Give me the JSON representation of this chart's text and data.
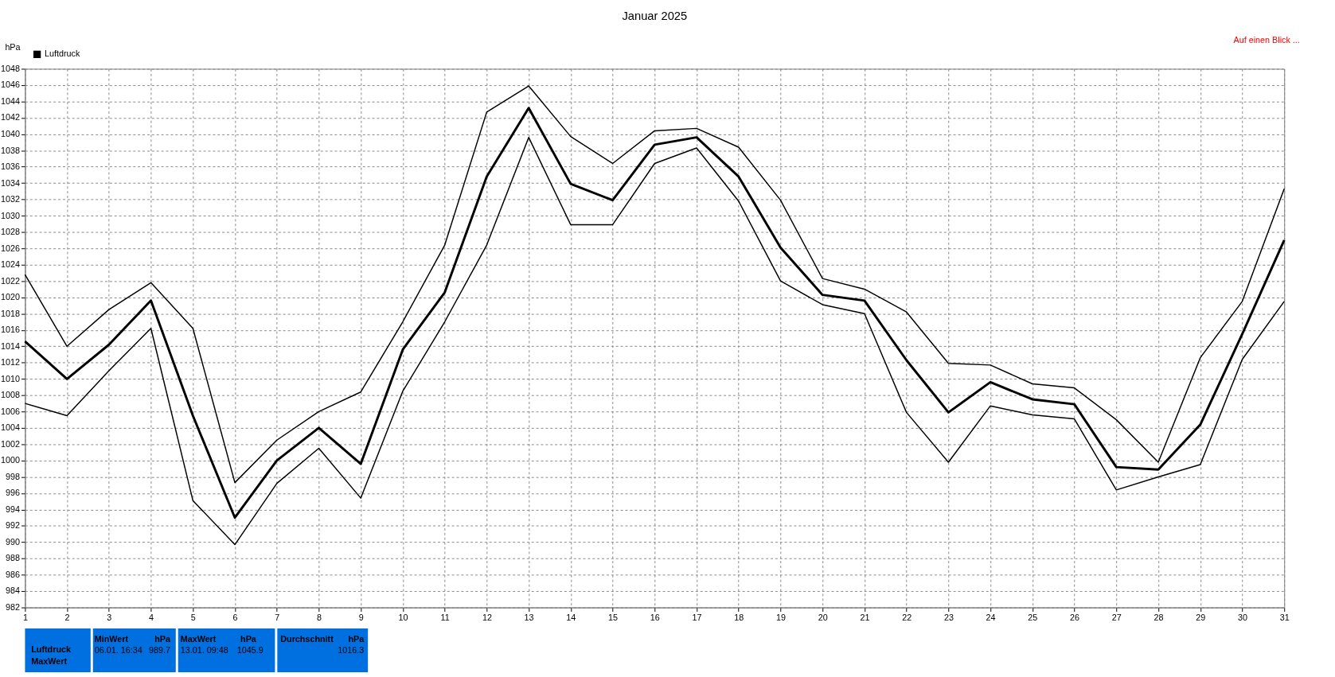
{
  "chart_data": {
    "type": "line",
    "title": "Januar 2025",
    "ylabel": "hPa",
    "x": [
      1,
      2,
      3,
      4,
      5,
      6,
      7,
      8,
      9,
      10,
      11,
      12,
      13,
      14,
      15,
      16,
      17,
      18,
      19,
      20,
      21,
      22,
      23,
      24,
      25,
      26,
      27,
      28,
      29,
      30,
      31
    ],
    "series": [
      {
        "color": "#000000",
        "values": [
          1022.8,
          1014.0,
          1018.5,
          1021.8,
          1016.2,
          997.3,
          1002.5,
          1006.0,
          1008.4,
          1017.0,
          1026.4,
          1042.7,
          1045.9,
          1039.7,
          1036.4,
          1040.4,
          1040.7,
          1038.4,
          1031.9,
          1022.3,
          1021.0,
          1018.2,
          1011.9,
          1011.7,
          1009.4,
          1008.9,
          1005.0,
          999.8,
          1012.6,
          1019.5,
          1033.3
        ]
      },
      {
        "name": "Luftdruck",
        "color": "#000000",
        "values": [
          1014.6,
          1010.0,
          1014.2,
          1019.6,
          1005.5,
          993.0,
          1000.0,
          1004.0,
          999.6,
          1013.6,
          1020.6,
          1034.8,
          1043.2,
          1033.9,
          1031.9,
          1038.7,
          1039.6,
          1034.8,
          1026.1,
          1020.3,
          1019.6,
          1012.3,
          1005.9,
          1009.6,
          1007.5,
          1006.9,
          999.2,
          998.9,
          1004.4,
          1015.5,
          1027.0
        ]
      },
      {
        "color": "#000000",
        "values": [
          1007.0,
          1005.5,
          1011.0,
          1016.2,
          995.1,
          989.7,
          997.2,
          1001.5,
          995.4,
          1008.5,
          1017.0,
          1026.4,
          1039.6,
          1028.9,
          1028.9,
          1036.4,
          1038.3,
          1031.8,
          1022.0,
          1019.1,
          1018.0,
          1005.9,
          999.8,
          1006.7,
          1005.6,
          1005.1,
          996.4,
          998.0,
          999.5,
          1012.4,
          1019.5
        ]
      }
    ],
    "xlim": [
      1,
      31
    ],
    "xticks": [
      1,
      2,
      3,
      4,
      5,
      6,
      7,
      8,
      9,
      10,
      11,
      12,
      13,
      14,
      15,
      16,
      17,
      18,
      19,
      20,
      21,
      22,
      23,
      24,
      25,
      26,
      27,
      28,
      29,
      30,
      31
    ],
    "ylim": [
      982,
      1048
    ],
    "yticks": [
      982,
      984,
      986,
      988,
      990,
      992,
      994,
      996,
      998,
      1000,
      1002,
      1004,
      1006,
      1008,
      1010,
      1012,
      1014,
      1016,
      1018,
      1020,
      1022,
      1024,
      1026,
      1028,
      1030,
      1032,
      1034,
      1036,
      1038,
      1040,
      1042,
      1044,
      1046,
      1048
    ],
    "grid": true,
    "legend": "top left",
    "marker": "none",
    "line_style": "solid",
    "annotations": [
      "Auf einen Blick ...",
      "Luftdruck",
      "MaxWert",
      "MinWert",
      "hPa",
      "06.01.  16:34",
      "989.7",
      "MaxWert",
      "hPa",
      "13.01.  09:48",
      "1045.9",
      "Durchschnitt",
      "hPa",
      "1016.3"
    ]
  }
}
